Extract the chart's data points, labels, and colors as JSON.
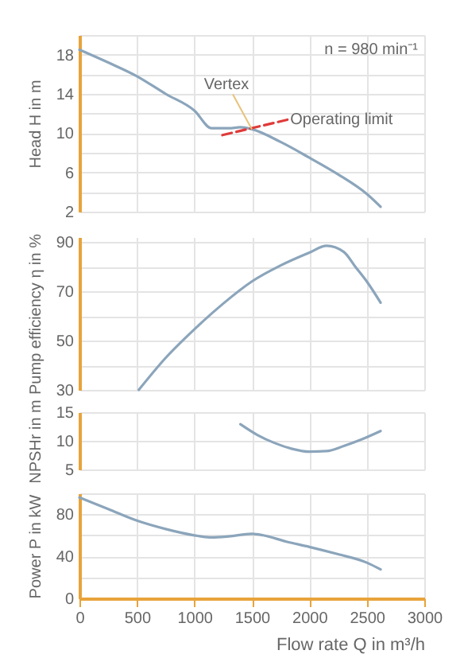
{
  "chart_data": [
    {
      "type": "line",
      "ylabel": "Head H in m",
      "xlim": [
        0,
        3000
      ],
      "xticks": [
        0,
        500,
        1000,
        1500,
        2000,
        2500,
        3000
      ],
      "ylim": [
        2,
        20
      ],
      "yticks": [
        2,
        {
          "value": 4,
          "label": null
        },
        6,
        {
          "value": 8,
          "label": null
        },
        10,
        {
          "value": 12,
          "label": null
        },
        14,
        {
          "value": 16,
          "label": null
        },
        18,
        {
          "value": 20,
          "label": null
        }
      ],
      "tick_labels": "y",
      "grid": true,
      "series": [
        {
          "x": [
            0,
            250,
            500,
            750,
            1000,
            1150,
            1300,
            1400,
            1500,
            1750,
            2000,
            2250,
            2500,
            2620
          ],
          "values": [
            18.5,
            17.2,
            15.8,
            14,
            12.3,
            10.5,
            10.5,
            10.6,
            10.4,
            9.1,
            7.5,
            5.8,
            3.8,
            2.5
          ],
          "color": "#8ba5bb"
        },
        {
          "x": [
            1244,
            1820
          ],
          "values": [
            9.8,
            11.4
          ],
          "color": "#e03a3a",
          "line_style": "dashed"
        }
      ],
      "annotations": [
        "n = 980 min⁻¹",
        {
          "text": "Vertex",
          "x": 1500,
          "y": 10.4
        },
        {
          "text": "Operating limit",
          "x": 1820,
          "y": 11.4
        }
      ]
    },
    {
      "type": "line",
      "ylabel": "Pump efficiency η in %",
      "xlim": [
        0,
        3000
      ],
      "xticks": [
        0,
        500,
        1000,
        1500,
        2000,
        2500,
        3000
      ],
      "ylim": [
        30,
        92
      ],
      "yticks": [
        30,
        {
          "value": 40,
          "label": null
        },
        50,
        {
          "value": 60,
          "label": null
        },
        70,
        {
          "value": 80,
          "label": null
        },
        90
      ],
      "tick_labels": "y",
      "grid": true,
      "series": [
        {
          "x": [
            516,
            750,
            1000,
            1250,
            1500,
            1750,
            2000,
            2150,
            2300,
            2400,
            2500,
            2620
          ],
          "values": [
            30,
            43,
            54.6,
            65,
            74,
            80.5,
            85.7,
            88.5,
            86,
            80,
            74,
            65.4
          ],
          "color": "#8ba5bb"
        }
      ]
    },
    {
      "type": "line",
      "ylabel": "NPSHr in m",
      "xlim": [
        0,
        3000
      ],
      "xticks": [
        0,
        500,
        1000,
        1500,
        2000,
        2500,
        3000
      ],
      "ylim": [
        5,
        15
      ],
      "yticks": [
        5,
        10,
        15
      ],
      "tick_labels": "y",
      "grid": true,
      "series": [
        {
          "x": [
            1400,
            1550,
            1700,
            1850,
            2000,
            2150,
            2300,
            2450,
            2620
          ],
          "values": [
            12.9,
            11,
            9.6,
            8.6,
            8.1,
            8.2,
            9.1,
            10.2,
            11.7
          ],
          "color": "#8ba5bb"
        }
      ]
    },
    {
      "type": "line",
      "ylabel": "Power P in kW",
      "xlabel": "Flow rate Q in m³/h",
      "xlim": [
        0,
        3000
      ],
      "xticks": [
        0,
        500,
        1000,
        1500,
        2000,
        2500,
        3000
      ],
      "ylim": [
        0,
        100
      ],
      "yticks": [
        0,
        {
          "value": 20,
          "label": null
        },
        40,
        {
          "value": 60,
          "label": null
        },
        80,
        {
          "value": 100,
          "label": null
        }
      ],
      "grid": true,
      "series": [
        {
          "x": [
            0,
            250,
            500,
            750,
            1000,
            1150,
            1300,
            1500,
            1600,
            1800,
            2000,
            2250,
            2500,
            2620
          ],
          "values": [
            96,
            85,
            74,
            66,
            60,
            58,
            59,
            61.5,
            60,
            54,
            49,
            42,
            34,
            27.5
          ],
          "color": "#8ba5bb"
        }
      ]
    }
  ]
}
